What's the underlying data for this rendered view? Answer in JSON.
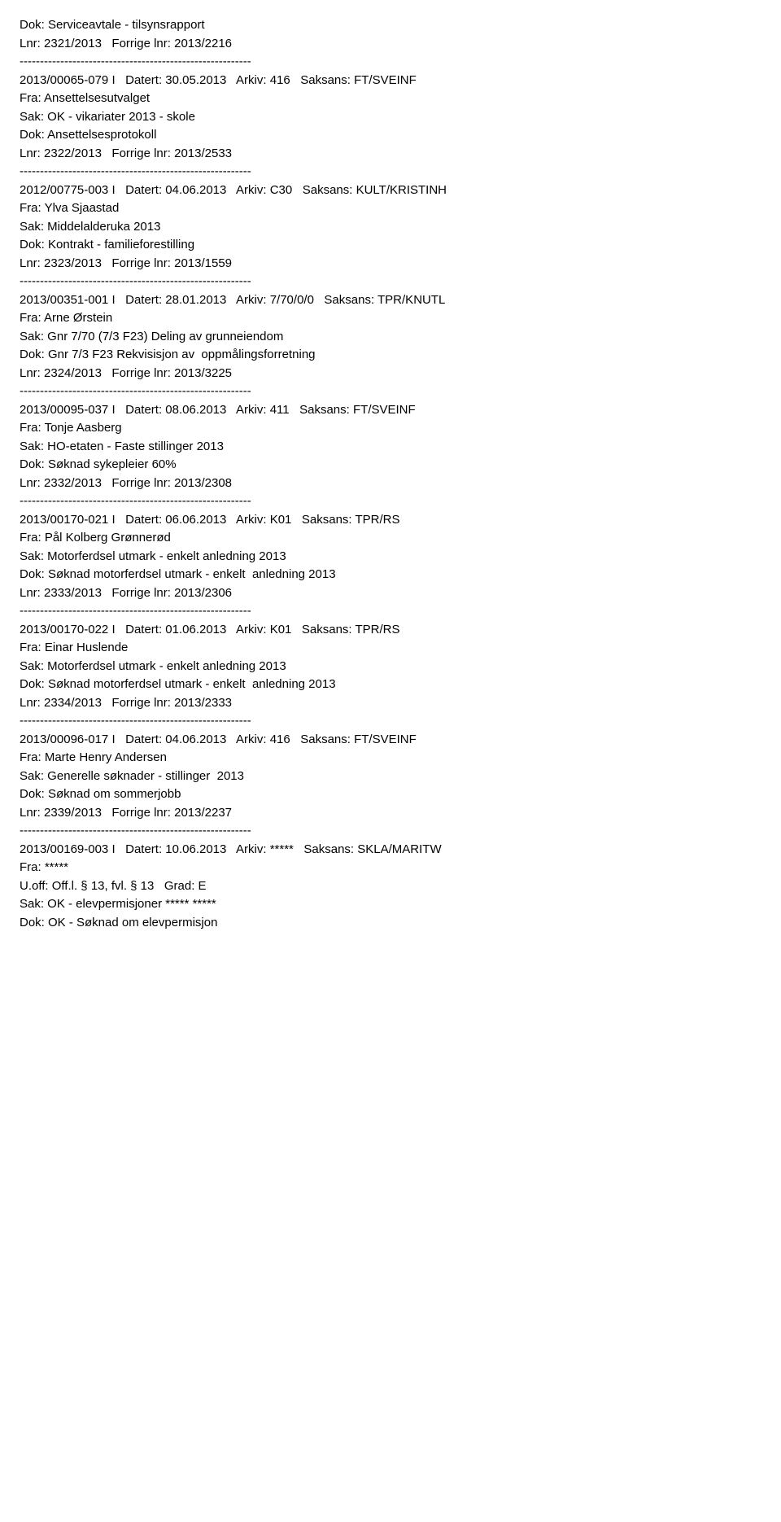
{
  "entries": [
    {
      "lines": [
        "Dok: Serviceavtale - tilsynsrapport",
        "Lnr: 2321/2013   Forrige lnr: 2013/2216",
        "---------------------------------------------------------",
        "2013/00065-079 I   Datert: 30.05.2013   Arkiv: 416   Saksans: FT/SVEINF",
        "Fra: Ansettelsesutvalget",
        "Sak: OK - vikariater 2013 - skole",
        "Dok: Ansettelsesprotokoll",
        "Lnr: 2322/2013   Forrige lnr: 2013/2533",
        "---------------------------------------------------------",
        "2012/00775-003 I   Datert: 04.06.2013   Arkiv: C30   Saksans: KULT/KRISTINH",
        "Fra: Ylva Sjaastad",
        "Sak: Middelalderuka 2013",
        "Dok: Kontrakt - familieforestilling",
        "Lnr: 2323/2013   Forrige lnr: 2013/1559",
        "---------------------------------------------------------",
        "2013/00351-001 I   Datert: 28.01.2013   Arkiv: 7/70/0/0   Saksans: TPR/KNUTL",
        "Fra: Arne Ørstein",
        "Sak: Gnr 7/70 (7/3 F23) Deling av grunneiendom",
        "Dok: Gnr 7/3 F23 Rekvisisjon av  oppmålingsforretning",
        "Lnr: 2324/2013   Forrige lnr: 2013/3225",
        "---------------------------------------------------------",
        "2013/00095-037 I   Datert: 08.06.2013   Arkiv: 411   Saksans: FT/SVEINF",
        "Fra: Tonje Aasberg",
        "Sak: HO-etaten - Faste stillinger 2013",
        "Dok: Søknad sykepleier 60%",
        "Lnr: 2332/2013   Forrige lnr: 2013/2308",
        "---------------------------------------------------------",
        "2013/00170-021 I   Datert: 06.06.2013   Arkiv: K01   Saksans: TPR/RS",
        "Fra: Pål Kolberg Grønnerød",
        "Sak: Motorferdsel utmark - enkelt anledning 2013",
        "Dok: Søknad motorferdsel utmark - enkelt  anledning 2013",
        "Lnr: 2333/2013   Forrige lnr: 2013/2306",
        "---------------------------------------------------------",
        "2013/00170-022 I   Datert: 01.06.2013   Arkiv: K01   Saksans: TPR/RS",
        "Fra: Einar Huslende",
        "Sak: Motorferdsel utmark - enkelt anledning 2013",
        "Dok: Søknad motorferdsel utmark - enkelt  anledning 2013",
        "Lnr: 2334/2013   Forrige lnr: 2013/2333",
        "---------------------------------------------------------",
        "2013/00096-017 I   Datert: 04.06.2013   Arkiv: 416   Saksans: FT/SVEINF",
        "Fra: Marte Henry Andersen",
        "Sak: Generelle søknader - stillinger  2013",
        "Dok: Søknad om sommerjobb",
        "Lnr: 2339/2013   Forrige lnr: 2013/2237",
        "---------------------------------------------------------",
        "2013/00169-003 I   Datert: 10.06.2013   Arkiv: *****   Saksans: SKLA/MARITW",
        "Fra: *****",
        "U.off: Off.l. § 13, fvl. § 13   Grad: E",
        "Sak: OK - elevpermisjoner ***** *****",
        "Dok: OK - Søknad om elevpermisjon"
      ]
    }
  ],
  "styling": {
    "font_family": "Verdana",
    "font_size": 15,
    "text_color": "#000000",
    "background_color": "#ffffff",
    "line_height": 1.5
  }
}
